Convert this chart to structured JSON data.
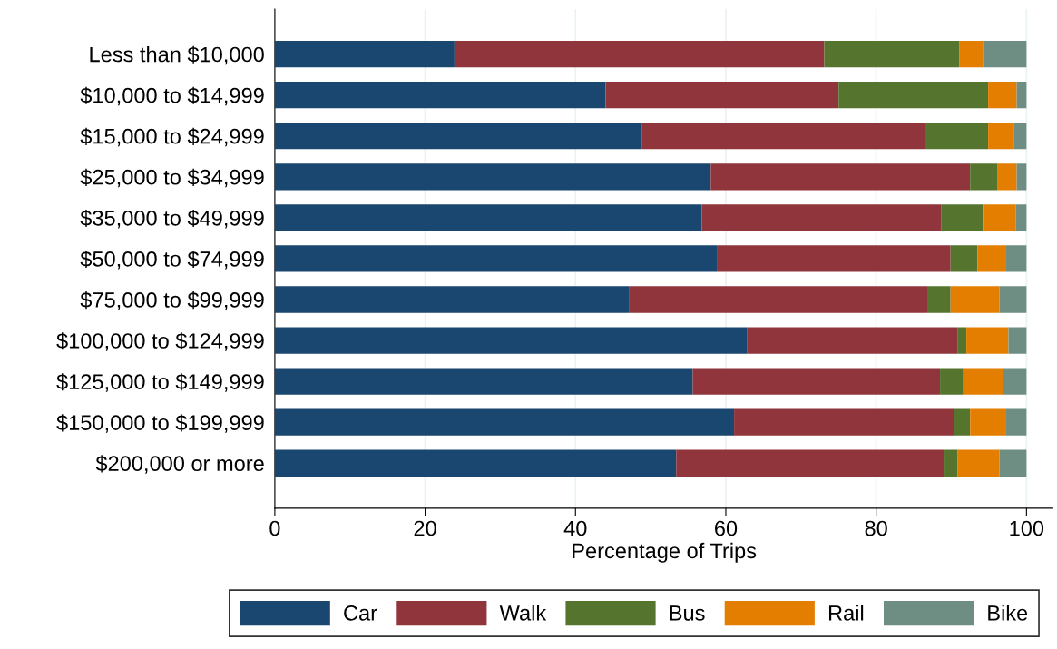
{
  "chart_data": {
    "type": "bar",
    "orientation": "horizontal",
    "stacked": true,
    "xlabel": "Percentage of Trips",
    "categories": [
      "Less than $10,000",
      "$10,000 to $14,999",
      "$15,000 to $24,999",
      "$25,000 to $34,999",
      "$35,000 to $49,999",
      "$50,000 to $74,999",
      "$75,000 to $99,999",
      "$100,000 to $124,999",
      "$125,000 to $149,999",
      "$150,000 to $199,999",
      "$200,000 or more"
    ],
    "series": [
      {
        "name": "Car",
        "color": "#1a476f",
        "values": [
          23.9,
          44.0,
          48.8,
          58.0,
          56.8,
          58.9,
          47.1,
          62.8,
          55.6,
          61.1,
          53.4
        ]
      },
      {
        "name": "Walk",
        "color": "#90353b",
        "values": [
          49.2,
          31.0,
          37.7,
          34.5,
          31.9,
          31.0,
          39.7,
          28.0,
          32.9,
          29.3,
          35.7
        ]
      },
      {
        "name": "Bus",
        "color": "#55752f",
        "values": [
          18.0,
          19.9,
          8.4,
          3.6,
          5.5,
          3.6,
          3.1,
          1.2,
          3.1,
          2.1,
          1.7
        ]
      },
      {
        "name": "Rail",
        "color": "#e37e00",
        "values": [
          3.1,
          3.8,
          3.4,
          2.6,
          4.4,
          3.8,
          6.5,
          5.6,
          5.3,
          4.8,
          5.6
        ]
      },
      {
        "name": "Bike",
        "color": "#6e8e84",
        "values": [
          5.8,
          1.3,
          1.7,
          1.3,
          1.4,
          2.7,
          3.6,
          2.4,
          3.1,
          2.7,
          3.6
        ]
      }
    ],
    "xlim": [
      0,
      103.5
    ],
    "xticks": [
      0,
      20,
      40,
      60,
      80,
      100
    ],
    "grid": "x",
    "legend": "bottom"
  }
}
